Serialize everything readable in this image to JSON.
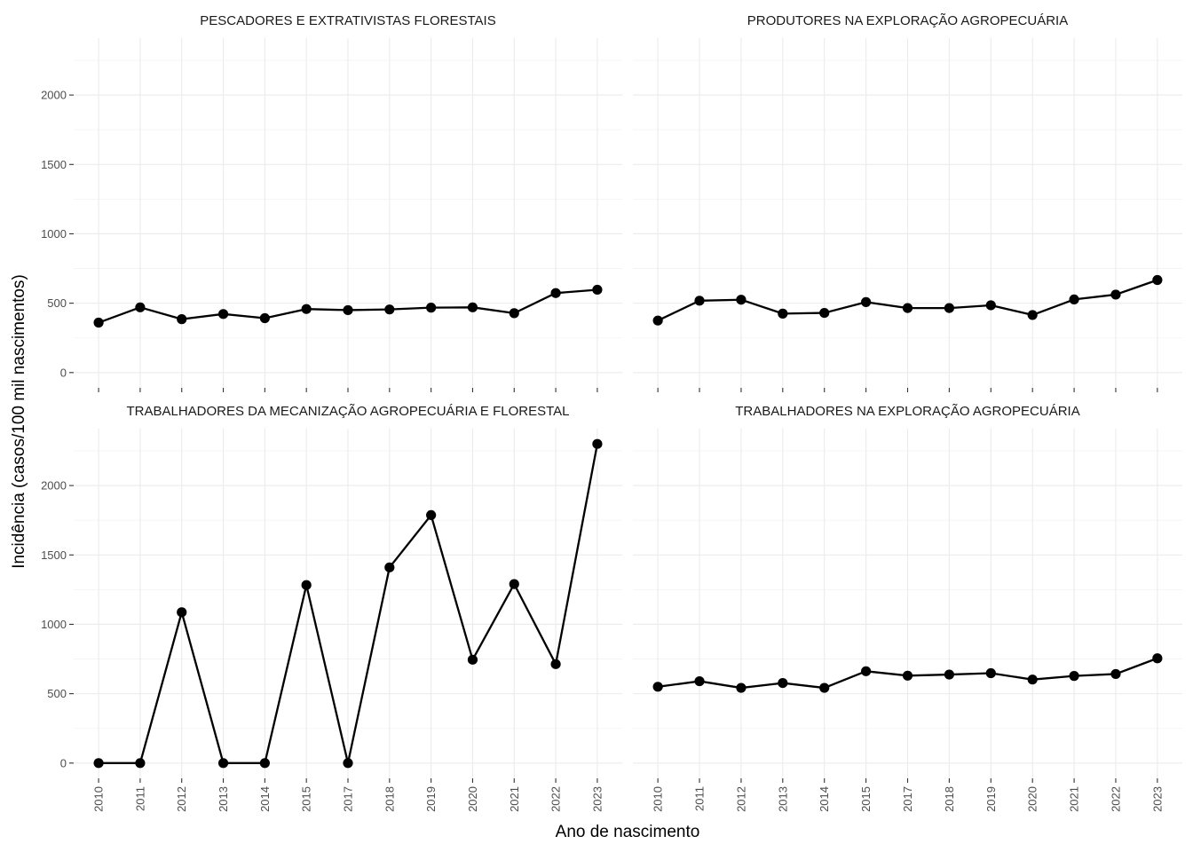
{
  "chart_data": {
    "type": "line",
    "facets": [
      {
        "title": "PESCADORES E EXTRATIVISTAS FLORESTAIS",
        "x": [
          "2010",
          "2011",
          "2012",
          "2013",
          "2014",
          "2015",
          "2017",
          "2018",
          "2019",
          "2020",
          "2021",
          "2022",
          "2023"
        ],
        "y": [
          360,
          470,
          385,
          422,
          392,
          458,
          450,
          455,
          468,
          470,
          428,
          573,
          597
        ]
      },
      {
        "title": "PRODUTORES NA EXPLORAÇÃO AGROPECUÁRIA",
        "x": [
          "2010",
          "2011",
          "2012",
          "2013",
          "2014",
          "2015",
          "2017",
          "2018",
          "2019",
          "2020",
          "2021",
          "2022",
          "2023"
        ],
        "y": [
          375,
          518,
          525,
          425,
          430,
          508,
          465,
          465,
          485,
          415,
          527,
          562,
          667
        ]
      },
      {
        "title": "TRABALHADORES DA MECANIZAÇÃO AGROPECUÁRIA E FLORESTAL",
        "x": [
          "2010",
          "2011",
          "2012",
          "2013",
          "2014",
          "2015",
          "2017",
          "2018",
          "2019",
          "2020",
          "2021",
          "2022",
          "2023"
        ],
        "y": [
          0,
          0,
          1087,
          0,
          0,
          1283,
          0,
          1410,
          1787,
          745,
          1290,
          713,
          2300
        ]
      },
      {
        "title": "TRABALHADORES NA EXPLORAÇÃO AGROPECUÁRIA",
        "x": [
          "2010",
          "2011",
          "2012",
          "2013",
          "2014",
          "2015",
          "2017",
          "2018",
          "2019",
          "2020",
          "2021",
          "2022",
          "2023"
        ],
        "y": [
          550,
          590,
          542,
          577,
          542,
          662,
          630,
          638,
          648,
          602,
          628,
          642,
          755
        ]
      }
    ],
    "xlabel": "Ano de nascimento",
    "ylabel": "Incidência (casos/100 mil nascimentos)",
    "yticks": [
      0,
      500,
      1000,
      1500,
      2000
    ],
    "ylim": [
      -110,
      2410
    ],
    "grid": true
  }
}
